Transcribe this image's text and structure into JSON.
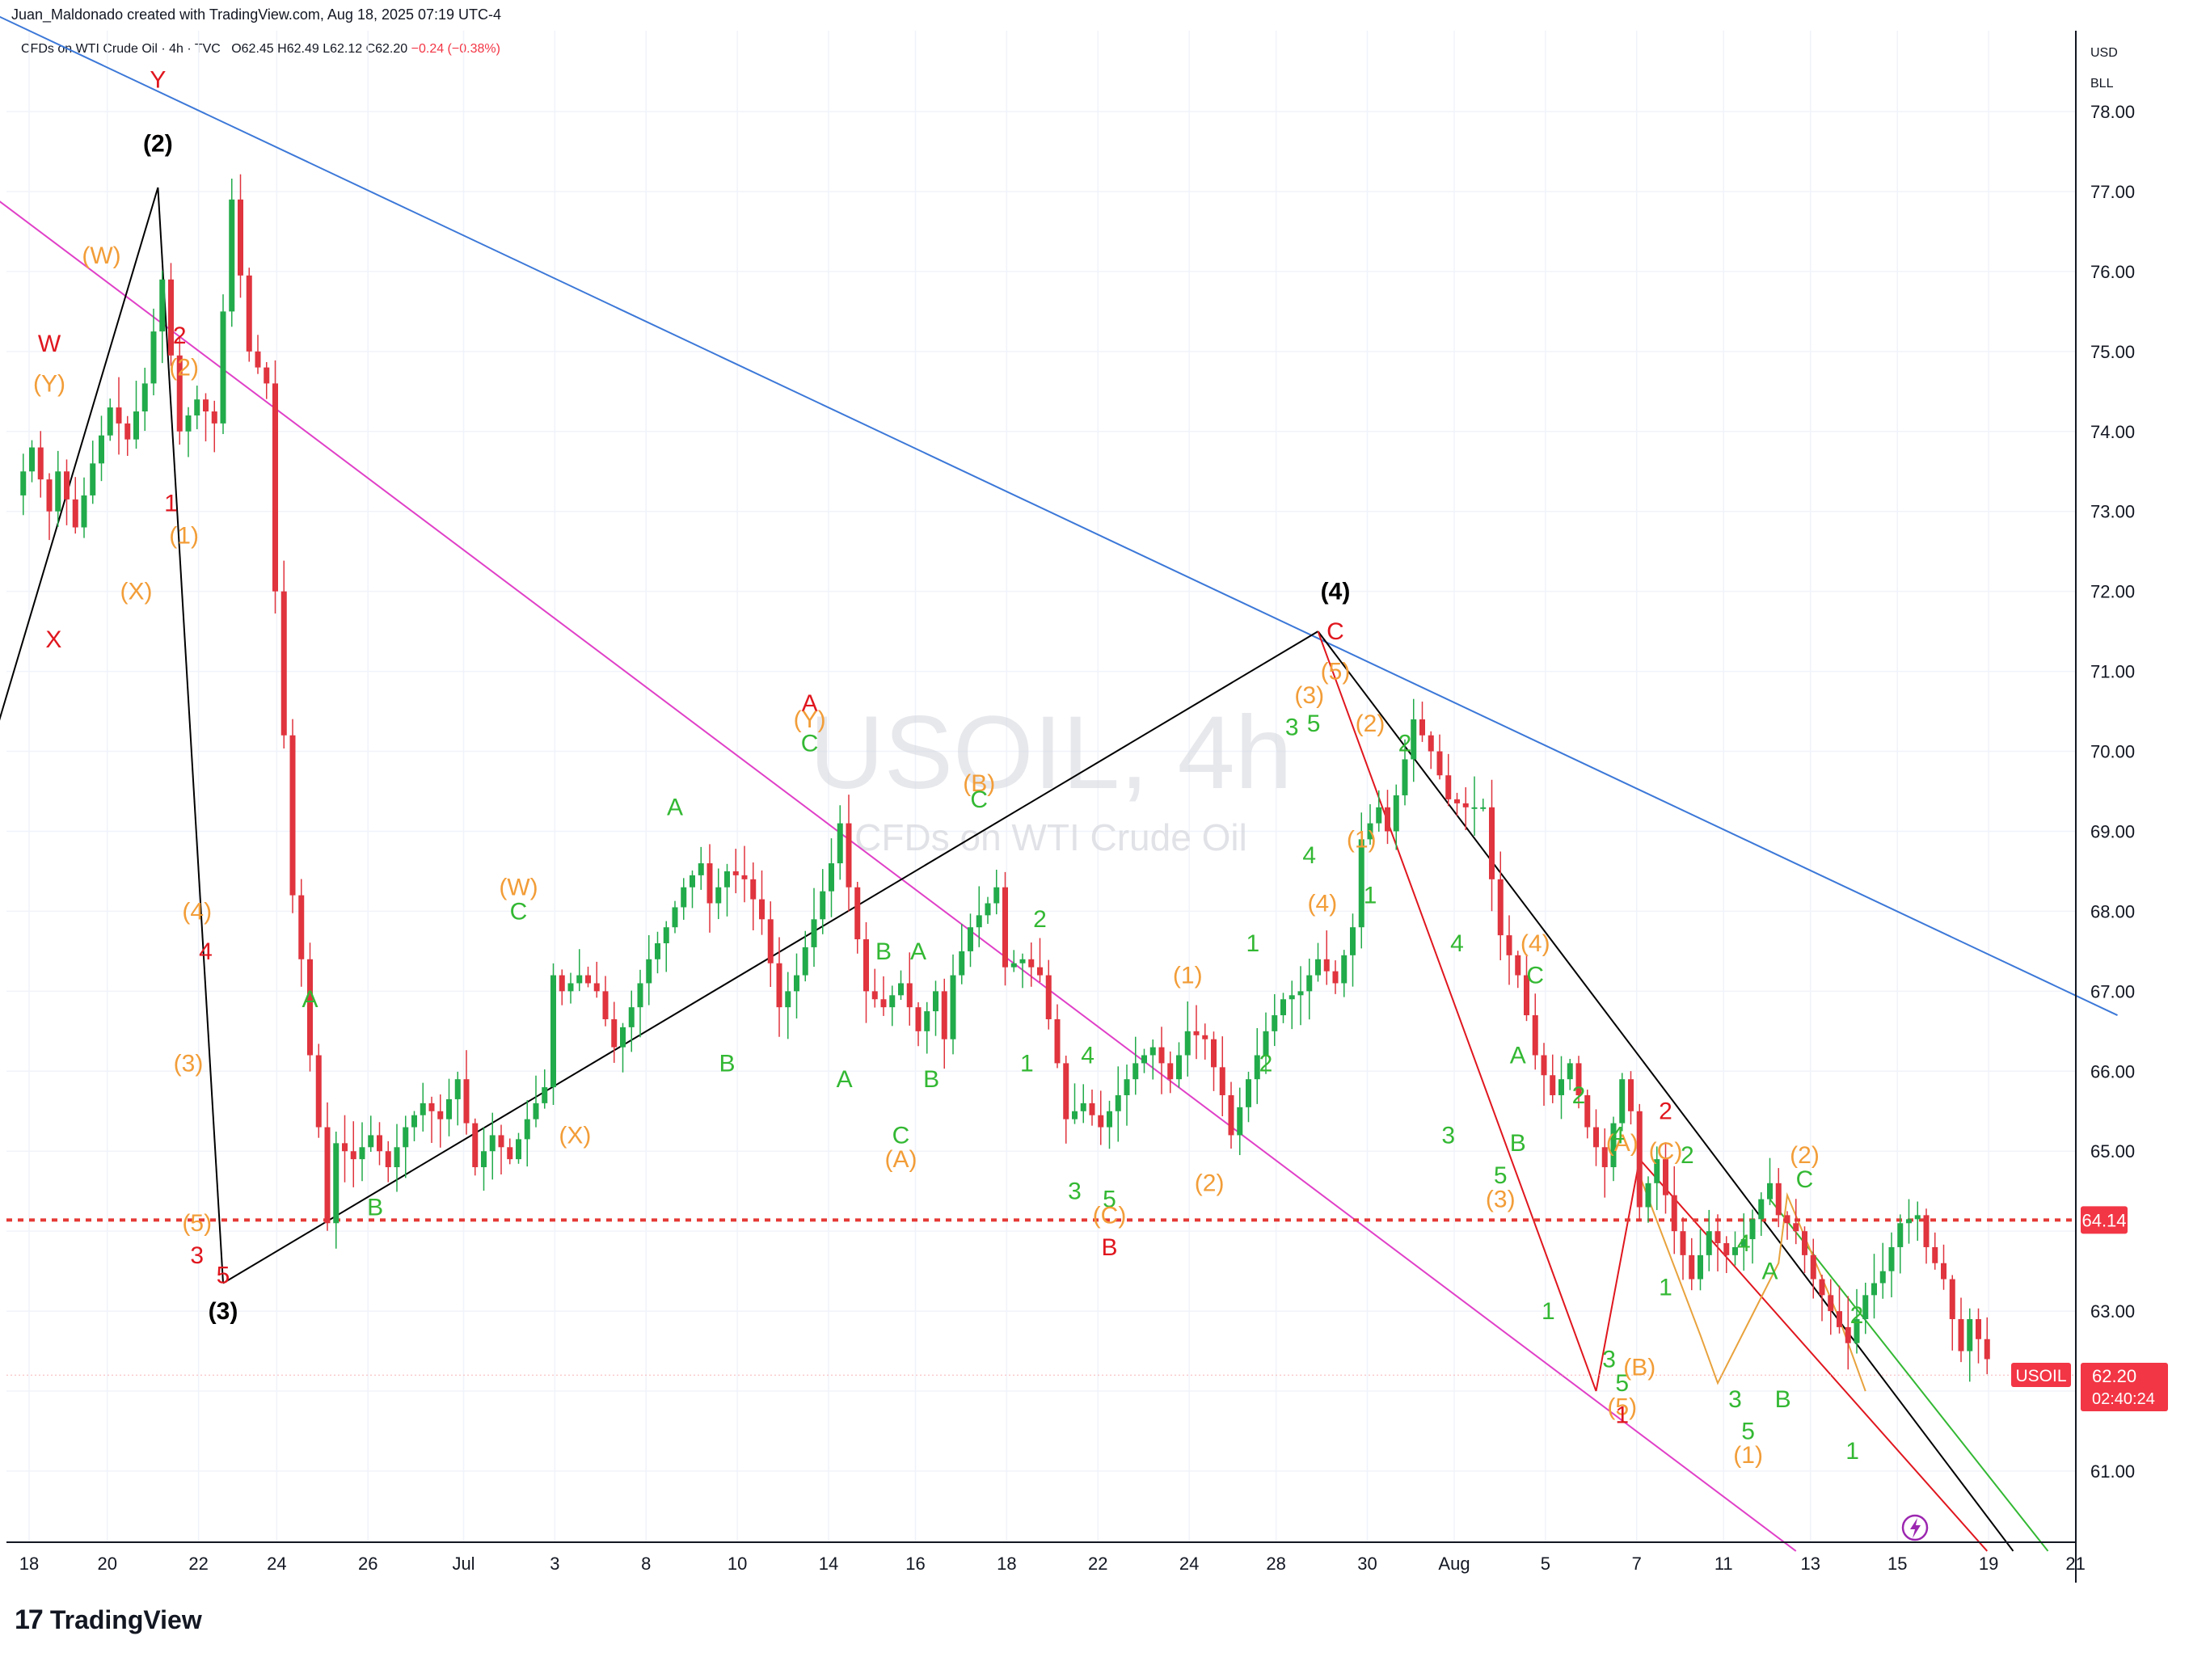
{
  "header": {
    "credit": "Juan_Maldonado created with TradingView.com, Aug 18, 2025 07:19 UTC-4",
    "symbol_desc": "CFDs on WTI Crude Oil · 4h · TVC",
    "o": "O62.45",
    "h": "H62.49",
    "l": "L62.12",
    "c": "C62.20",
    "change": "−0.24 (−0.38%)"
  },
  "watermark": {
    "title": "USOIL, 4h",
    "subtitle": "CFDs on WTI Crude Oil"
  },
  "brand": {
    "logo_mark": "17",
    "name": "TradingView"
  },
  "colors": {
    "up": "#22ab4a",
    "down": "#e0343e",
    "red_label": "#e0161e",
    "orange_label": "#f29d38",
    "green_label": "#33b833",
    "black_label": "#000000",
    "blue_line": "#3c78d8",
    "magenta_line": "#e040c8",
    "level_line": "#e53935",
    "grid": "#f0f3fa",
    "price_tag": "#f23645"
  },
  "chart_data": {
    "type": "candlestick",
    "symbol": "USOIL",
    "timeframe": "4h",
    "currency": "USD",
    "unit": "BLL",
    "y_ticks": [
      "61.00",
      "62.00",
      "63.00",
      "64.00",
      "65.00",
      "66.00",
      "67.00",
      "68.00",
      "69.00",
      "70.00",
      "71.00",
      "72.00",
      "73.00",
      "74.00",
      "75.00",
      "76.00",
      "77.00",
      "78.00"
    ],
    "ylim": [
      59.8,
      78.8
    ],
    "x_ticks": [
      "18",
      "20",
      "22",
      "24",
      "26",
      "Jul",
      "3",
      "8",
      "10",
      "14",
      "16",
      "18",
      "22",
      "24",
      "28",
      "30",
      "Aug",
      "5",
      "7",
      "11",
      "13",
      "15",
      "19",
      "21"
    ],
    "last_price": {
      "label": "USOIL",
      "value": "62.20",
      "countdown": "02:40:24"
    },
    "level_line": {
      "value": 64.14,
      "label": "64.14"
    },
    "close_path": [
      [
        0,
        73.2
      ],
      [
        2,
        73.8
      ],
      [
        4,
        73.0
      ],
      [
        5,
        73.5
      ],
      [
        7,
        72.8
      ],
      [
        9,
        73.6
      ],
      [
        11,
        74.3
      ],
      [
        13,
        73.9
      ],
      [
        15,
        74.6
      ],
      [
        17,
        75.9
      ],
      [
        19,
        74.0
      ],
      [
        21,
        74.4
      ],
      [
        23,
        74.1
      ],
      [
        25,
        76.9
      ],
      [
        27,
        75.0
      ],
      [
        29,
        74.6
      ],
      [
        30,
        72.0
      ],
      [
        31,
        70.2
      ],
      [
        32,
        68.2
      ],
      [
        33,
        67.4
      ],
      [
        34,
        66.2
      ],
      [
        35,
        65.3
      ],
      [
        36,
        64.1
      ],
      [
        37,
        65.1
      ],
      [
        39,
        64.9
      ],
      [
        41,
        65.2
      ],
      [
        43,
        64.8
      ],
      [
        45,
        65.3
      ],
      [
        47,
        65.6
      ],
      [
        49,
        65.4
      ],
      [
        51,
        65.9
      ],
      [
        53,
        64.8
      ],
      [
        55,
        65.2
      ],
      [
        57,
        64.9
      ],
      [
        59,
        65.4
      ],
      [
        61,
        65.8
      ],
      [
        62,
        67.2
      ],
      [
        63,
        67.0
      ],
      [
        65,
        67.2
      ],
      [
        67,
        67.0
      ],
      [
        69,
        66.3
      ],
      [
        71,
        66.8
      ],
      [
        73,
        67.4
      ],
      [
        75,
        67.8
      ],
      [
        77,
        68.3
      ],
      [
        79,
        68.6
      ],
      [
        80,
        68.1
      ],
      [
        82,
        68.5
      ],
      [
        84,
        68.4
      ],
      [
        86,
        67.9
      ],
      [
        88,
        66.8
      ],
      [
        90,
        67.2
      ],
      [
        92,
        67.9
      ],
      [
        94,
        68.6
      ],
      [
        95,
        69.1
      ],
      [
        96,
        68.3
      ],
      [
        98,
        67.0
      ],
      [
        100,
        66.8
      ],
      [
        102,
        67.1
      ],
      [
        104,
        66.5
      ],
      [
        106,
        67.0
      ],
      [
        107,
        66.4
      ],
      [
        108,
        67.2
      ],
      [
        110,
        67.8
      ],
      [
        112,
        68.1
      ],
      [
        113,
        68.3
      ],
      [
        114,
        67.3
      ],
      [
        116,
        67.4
      ],
      [
        118,
        67.2
      ],
      [
        120,
        66.1
      ],
      [
        121,
        65.4
      ],
      [
        123,
        65.6
      ],
      [
        125,
        65.3
      ],
      [
        127,
        65.7
      ],
      [
        129,
        66.1
      ],
      [
        131,
        66.3
      ],
      [
        133,
        65.9
      ],
      [
        135,
        66.5
      ],
      [
        137,
        66.4
      ],
      [
        139,
        65.7
      ],
      [
        140,
        65.2
      ],
      [
        142,
        65.9
      ],
      [
        144,
        66.5
      ],
      [
        146,
        66.9
      ],
      [
        148,
        67.0
      ],
      [
        150,
        67.4
      ],
      [
        152,
        67.1
      ],
      [
        154,
        67.8
      ],
      [
        155,
        68.9
      ],
      [
        157,
        69.3
      ],
      [
        158,
        69.0
      ],
      [
        160,
        69.9
      ],
      [
        161,
        70.4
      ],
      [
        163,
        70.0
      ],
      [
        165,
        69.4
      ],
      [
        167,
        69.3
      ],
      [
        169,
        69.3
      ],
      [
        170,
        68.4
      ],
      [
        171,
        67.7
      ],
      [
        173,
        67.2
      ],
      [
        175,
        66.2
      ],
      [
        177,
        65.7
      ],
      [
        179,
        66.1
      ],
      [
        181,
        65.3
      ],
      [
        183,
        64.8
      ],
      [
        185,
        65.9
      ],
      [
        186,
        65.5
      ],
      [
        187,
        64.3
      ],
      [
        189,
        64.9
      ],
      [
        191,
        64.0
      ],
      [
        193,
        63.4
      ],
      [
        195,
        64.0
      ],
      [
        197,
        63.7
      ],
      [
        199,
        63.9
      ],
      [
        201,
        64.4
      ],
      [
        202,
        64.6
      ],
      [
        203,
        64.2
      ],
      [
        205,
        64.0
      ],
      [
        207,
        63.4
      ],
      [
        209,
        63.0
      ],
      [
        211,
        62.6
      ],
      [
        213,
        63.2
      ],
      [
        215,
        63.5
      ],
      [
        217,
        64.1
      ],
      [
        219,
        64.2
      ],
      [
        220,
        63.8
      ],
      [
        222,
        63.4
      ],
      [
        223,
        62.9
      ],
      [
        224,
        62.5
      ],
      [
        225,
        62.9
      ],
      [
        227,
        62.4
      ]
    ],
    "trend_lines": [
      {
        "name": "blue-channel",
        "color": "#3c78d8",
        "p1": [
          -2,
          79.2
        ],
        "p2": [
          242,
          66.7
        ]
      },
      {
        "name": "magenta-channel",
        "color": "#e040c8",
        "p1": [
          -2,
          76.9
        ],
        "p2": [
          205,
          60.0
        ]
      },
      {
        "name": "black-support",
        "color": "#000000",
        "p1": [
          24,
          63.35
        ],
        "p2": [
          150,
          71.5
        ]
      },
      {
        "name": "black-wave-2",
        "color": "#000000",
        "p1": [
          -2,
          70.3
        ],
        "p2": [
          16.5,
          77.05
        ]
      },
      {
        "name": "black-wave-3",
        "color": "#000000",
        "p1": [
          16.5,
          77.05
        ],
        "p2": [
          24,
          63.35
        ]
      },
      {
        "name": "black-wave-5",
        "color": "#000000",
        "p1": [
          150,
          71.5
        ],
        "p2": [
          230,
          60.0
        ]
      },
      {
        "name": "red-wave-a",
        "color": "#e0161e",
        "p1": [
          150,
          71.5
        ],
        "p2": [
          182,
          62.0
        ]
      },
      {
        "name": "red-wave-b",
        "color": "#e0161e",
        "p1": [
          182,
          62.0
        ],
        "p2": [
          187,
          64.9
        ]
      },
      {
        "name": "red-wave-c",
        "color": "#e0161e",
        "p1": [
          187,
          64.9
        ],
        "p2": [
          227,
          60.0
        ]
      },
      {
        "name": "green-path",
        "color": "#33b833",
        "p1": [
          202,
          64.4
        ],
        "p2": [
          234,
          60.0
        ]
      }
    ],
    "orange_zigzag": [
      [
        187,
        64.7
      ],
      [
        194,
        62.7
      ],
      [
        196,
        62.1
      ],
      [
        203,
        63.6
      ],
      [
        204,
        64.45
      ],
      [
        210,
        62.9
      ],
      [
        213,
        62.0
      ]
    ],
    "labels": [
      {
        "t": "Y",
        "c": "red",
        "x": 16.5,
        "y": 78.3
      },
      {
        "t": "(2)",
        "c": "orange",
        "x": 16.5,
        "y": 77.5
      },
      {
        "t": "(2)",
        "c": "black",
        "x": 16.5,
        "y": 77.5
      },
      {
        "t": "(W)",
        "c": "orange",
        "x": 10,
        "y": 76.1
      },
      {
        "t": "W",
        "c": "red",
        "x": 4,
        "y": 75.0
      },
      {
        "t": "(Y)",
        "c": "orange",
        "x": 4,
        "y": 74.5
      },
      {
        "t": "2",
        "c": "red",
        "x": 19,
        "y": 75.1
      },
      {
        "t": "(2)",
        "c": "orange",
        "x": 19.5,
        "y": 74.7
      },
      {
        "t": "1",
        "c": "red",
        "x": 18,
        "y": 73.0
      },
      {
        "t": "(1)",
        "c": "orange",
        "x": 19.5,
        "y": 72.6
      },
      {
        "t": "(X)",
        "c": "orange",
        "x": 14,
        "y": 71.9
      },
      {
        "t": "X",
        "c": "red",
        "x": 4.5,
        "y": 71.3
      },
      {
        "t": "(4)",
        "c": "orange",
        "x": 21,
        "y": 67.9
      },
      {
        "t": "4",
        "c": "red",
        "x": 22,
        "y": 67.4
      },
      {
        "t": "(3)",
        "c": "orange",
        "x": 20,
        "y": 66.0
      },
      {
        "t": "(5)",
        "c": "orange",
        "x": 21,
        "y": 64.0
      },
      {
        "t": "3",
        "c": "red",
        "x": 21,
        "y": 63.6
      },
      {
        "t": "5",
        "c": "red",
        "x": 24,
        "y": 63.35
      },
      {
        "t": "(3)",
        "c": "black",
        "x": 24,
        "y": 62.9
      },
      {
        "t": "A",
        "c": "green",
        "x": 34,
        "y": 66.8
      },
      {
        "t": "B",
        "c": "green",
        "x": 41.5,
        "y": 64.2
      },
      {
        "t": "(W)",
        "c": "orange",
        "x": 58,
        "y": 68.2
      },
      {
        "t": "C",
        "c": "green",
        "x": 58,
        "y": 67.9
      },
      {
        "t": "(X)",
        "c": "orange",
        "x": 64.5,
        "y": 65.1
      },
      {
        "t": "A",
        "c": "green",
        "x": 76,
        "y": 69.2
      },
      {
        "t": "B",
        "c": "green",
        "x": 82,
        "y": 66.0
      },
      {
        "t": "A",
        "c": "red",
        "x": 91.5,
        "y": 70.5
      },
      {
        "t": "(Y)",
        "c": "orange",
        "x": 91.5,
        "y": 70.3
      },
      {
        "t": "C",
        "c": "green",
        "x": 91.5,
        "y": 70.0
      },
      {
        "t": "B",
        "c": "green",
        "x": 100,
        "y": 67.4
      },
      {
        "t": "A",
        "c": "green",
        "x": 104,
        "y": 67.4
      },
      {
        "t": "A",
        "c": "green",
        "x": 95.5,
        "y": 65.8
      },
      {
        "t": "C",
        "c": "green",
        "x": 102,
        "y": 65.1
      },
      {
        "t": "(A)",
        "c": "orange",
        "x": 102,
        "y": 64.8
      },
      {
        "t": "B",
        "c": "green",
        "x": 105.5,
        "y": 65.8
      },
      {
        "t": "(B)",
        "c": "orange",
        "x": 111,
        "y": 69.5
      },
      {
        "t": "C",
        "c": "green",
        "x": 111,
        "y": 69.3
      },
      {
        "t": "2",
        "c": "green",
        "x": 118,
        "y": 67.8
      },
      {
        "t": "1",
        "c": "green",
        "x": 116.5,
        "y": 66.0
      },
      {
        "t": "4",
        "c": "green",
        "x": 123.5,
        "y": 66.1
      },
      {
        "t": "3",
        "c": "green",
        "x": 122,
        "y": 64.4
      },
      {
        "t": "5",
        "c": "green",
        "x": 126,
        "y": 64.3
      },
      {
        "t": "(C)",
        "c": "orange",
        "x": 126,
        "y": 64.1
      },
      {
        "t": "B",
        "c": "red",
        "x": 126,
        "y": 63.7
      },
      {
        "t": "(1)",
        "c": "orange",
        "x": 135,
        "y": 67.1
      },
      {
        "t": "(2)",
        "c": "orange",
        "x": 137.5,
        "y": 64.5
      },
      {
        "t": "1",
        "c": "green",
        "x": 142.5,
        "y": 67.5
      },
      {
        "t": "2",
        "c": "green",
        "x": 144,
        "y": 66.0
      },
      {
        "t": "(4)",
        "c": "black",
        "x": 152,
        "y": 71.9
      },
      {
        "t": "C",
        "c": "red",
        "x": 152,
        "y": 71.4
      },
      {
        "t": "(5)",
        "c": "orange",
        "x": 152,
        "y": 70.9
      },
      {
        "t": "(3)",
        "c": "orange",
        "x": 149,
        "y": 70.6
      },
      {
        "t": "3",
        "c": "green",
        "x": 147,
        "y": 70.2
      },
      {
        "t": "5",
        "c": "green",
        "x": 149.5,
        "y": 70.25
      },
      {
        "t": "(2)",
        "c": "orange",
        "x": 156,
        "y": 70.25
      },
      {
        "t": "2",
        "c": "green",
        "x": 160,
        "y": 70.0
      },
      {
        "t": "(1)",
        "c": "orange",
        "x": 155,
        "y": 68.8
      },
      {
        "t": "4",
        "c": "green",
        "x": 149,
        "y": 68.6
      },
      {
        "t": "(4)",
        "c": "orange",
        "x": 150.5,
        "y": 68.0
      },
      {
        "t": "1",
        "c": "green",
        "x": 156,
        "y": 68.1
      },
      {
        "t": "4",
        "c": "green",
        "x": 166,
        "y": 67.5
      },
      {
        "t": "(4)",
        "c": "orange",
        "x": 175,
        "y": 67.5
      },
      {
        "t": "C",
        "c": "green",
        "x": 175,
        "y": 67.1
      },
      {
        "t": "A",
        "c": "green",
        "x": 173,
        "y": 66.1
      },
      {
        "t": "2",
        "c": "green",
        "x": 180,
        "y": 65.6
      },
      {
        "t": "3",
        "c": "green",
        "x": 165,
        "y": 65.1
      },
      {
        "t": "5",
        "c": "green",
        "x": 171,
        "y": 64.6
      },
      {
        "t": "B",
        "c": "green",
        "x": 173,
        "y": 65.0
      },
      {
        "t": "(3)",
        "c": "orange",
        "x": 171,
        "y": 64.3
      },
      {
        "t": "1",
        "c": "green",
        "x": 176.5,
        "y": 62.9
      },
      {
        "t": "(A)",
        "c": "orange",
        "x": 185,
        "y": 65.0
      },
      {
        "t": "4",
        "c": "green",
        "x": 184.5,
        "y": 65.1
      },
      {
        "t": "3",
        "c": "green",
        "x": 183.5,
        "y": 62.3
      },
      {
        "t": "5",
        "c": "green",
        "x": 185,
        "y": 62.0
      },
      {
        "t": "(B)",
        "c": "orange",
        "x": 187,
        "y": 62.2
      },
      {
        "t": "(5)",
        "c": "orange",
        "x": 185,
        "y": 61.7
      },
      {
        "t": "1",
        "c": "red",
        "x": 185,
        "y": 61.6
      },
      {
        "t": "2",
        "c": "red",
        "x": 190,
        "y": 65.4
      },
      {
        "t": "(C)",
        "c": "orange",
        "x": 190,
        "y": 64.9
      },
      {
        "t": "2",
        "c": "green",
        "x": 192.5,
        "y": 64.85
      },
      {
        "t": "1",
        "c": "green",
        "x": 190,
        "y": 63.2
      },
      {
        "t": "4",
        "c": "green",
        "x": 199,
        "y": 63.75
      },
      {
        "t": "A",
        "c": "green",
        "x": 202,
        "y": 63.4
      },
      {
        "t": "3",
        "c": "green",
        "x": 198,
        "y": 61.8
      },
      {
        "t": "B",
        "c": "green",
        "x": 203.5,
        "y": 61.8
      },
      {
        "t": "5",
        "c": "green",
        "x": 199.5,
        "y": 61.4
      },
      {
        "t": "(1)",
        "c": "orange",
        "x": 199.5,
        "y": 61.1
      },
      {
        "t": "(2)",
        "c": "orange",
        "x": 206,
        "y": 64.85
      },
      {
        "t": "C",
        "c": "green",
        "x": 206,
        "y": 64.55
      },
      {
        "t": "2",
        "c": "green",
        "x": 212,
        "y": 62.85
      },
      {
        "t": "1",
        "c": "green",
        "x": 211.5,
        "y": 61.15
      }
    ]
  }
}
